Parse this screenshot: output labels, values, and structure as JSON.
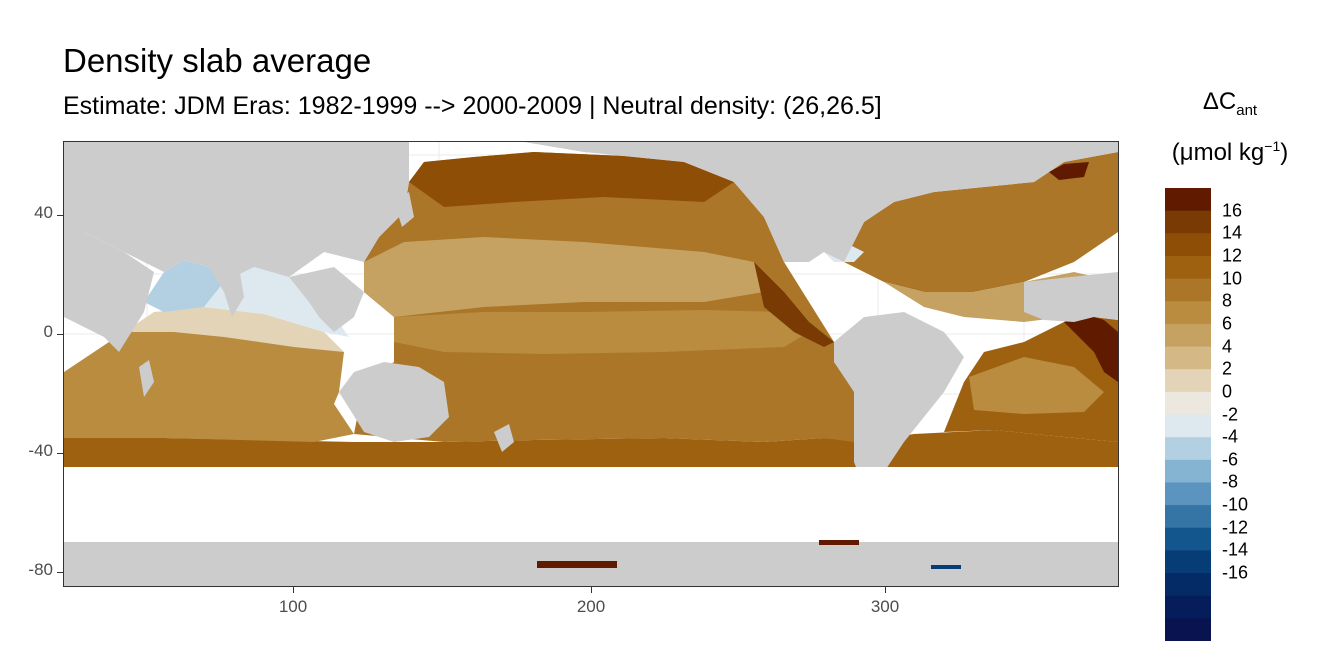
{
  "title": "Density slab average",
  "subtitle": "Estimate: JDM Eras: 1982-1999 --> 2000-2009 | Neutral density: (26,26.5]",
  "map": {
    "projection": "longitude-latitude",
    "xlim": [
      20,
      380
    ],
    "ylim": [
      -85,
      65
    ],
    "x_ticks": [
      "100",
      "200",
      "300"
    ],
    "y_ticks": [
      "40",
      "0",
      "-40",
      "-80"
    ],
    "land_color": "#cccccc",
    "no_data_color": "#ffffff",
    "grid": true
  },
  "legend": {
    "title_symbol": "ΔC",
    "title_subscript": "ant",
    "unit_prefix": "(μmol kg",
    "unit_superscript": "−1",
    "unit_suffix": ")",
    "labels": [
      "16",
      "14",
      "12",
      "10",
      "8",
      "6",
      "4",
      "2",
      "0",
      "-2",
      "-4",
      "-6",
      "-8",
      "-10",
      "-12",
      "-14",
      "-16"
    ],
    "colors": [
      "#5f1a00",
      "#7a3a04",
      "#8f4e06",
      "#9d610f",
      "#ab7627",
      "#b98c40",
      "#c6a262",
      "#d4b987",
      "#e3d4b7",
      "#ede8df",
      "#dde8ef",
      "#b3d0e3",
      "#85b4d3",
      "#5b95bf",
      "#3475a6",
      "#13568e",
      "#063d77",
      "#042b66",
      "#061d5b",
      "#081350"
    ]
  }
}
